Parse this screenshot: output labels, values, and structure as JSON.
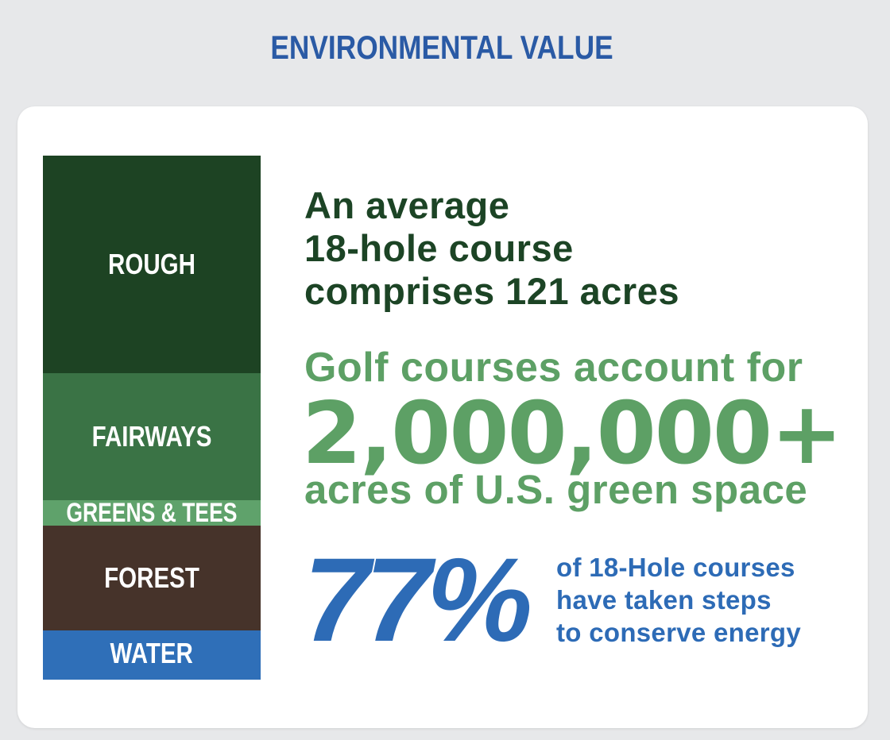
{
  "header": {
    "title": "ENVIRONMENTAL VALUE"
  },
  "land_use": {
    "segments": [
      {
        "label": "ROUGH",
        "color": "#1d4323"
      },
      {
        "label": "FAIRWAYS",
        "color": "#3a7345"
      },
      {
        "label": "GREENS & TEES",
        "color": "#5fa26b"
      },
      {
        "label": "FOREST",
        "color": "#46332a"
      },
      {
        "label": "WATER",
        "color": "#2f6fb8"
      }
    ]
  },
  "course_fact": {
    "lines": [
      "An average",
      "18-hole course",
      "comprises 121 acres"
    ]
  },
  "green_space": {
    "intro": "Golf courses account for",
    "number": "2,000,000+",
    "outro": "acres of U.S. green space"
  },
  "energy": {
    "percent": "77%",
    "caption_lines": [
      "of 18-Hole courses",
      "have taken steps",
      "to conserve energy"
    ]
  },
  "colors": {
    "title_blue": "#2a5aa5",
    "dark_green": "#1c4425",
    "light_green": "#5da065",
    "accent_blue": "#2d6bb6",
    "background": "#e7e8ea",
    "card": "#ffffff"
  }
}
